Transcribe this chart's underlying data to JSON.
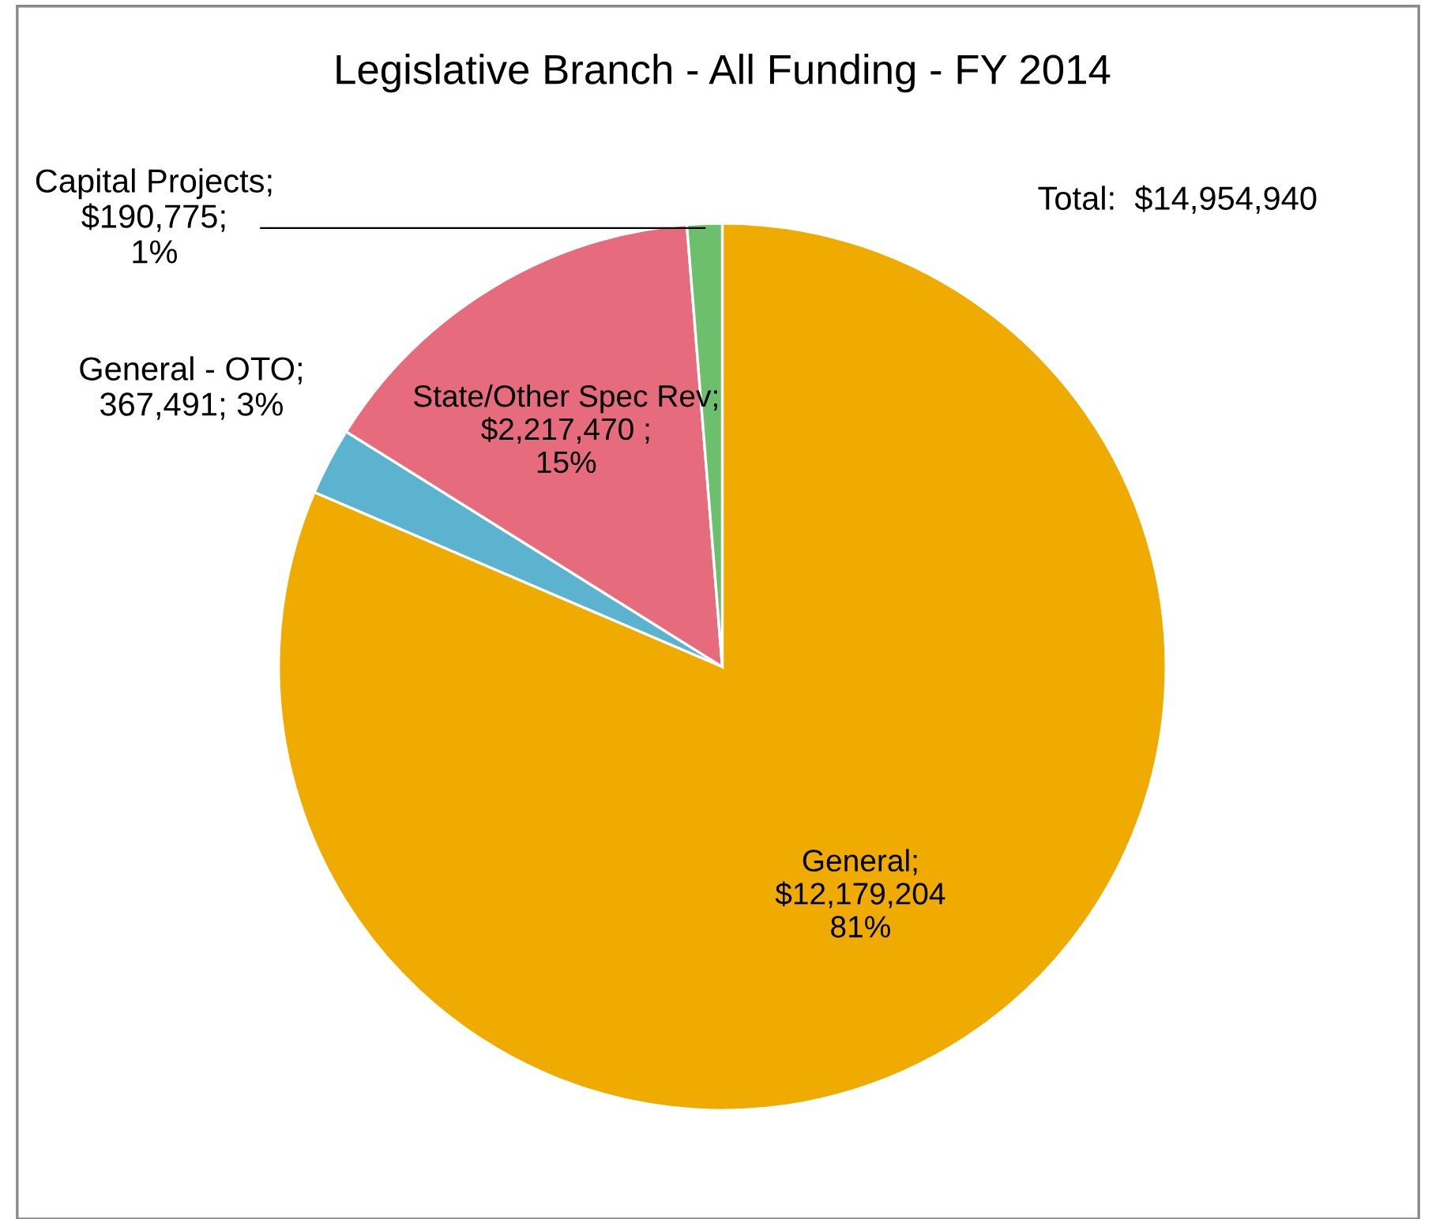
{
  "chart_data": {
    "type": "pie",
    "title": "Legislative Branch - All Funding - FY 2014",
    "categories": [
      "General",
      "General - OTO",
      "State/Other Spec Rev",
      "Capital Projects"
    ],
    "values": [
      12179204,
      367491,
      2217470,
      190775
    ],
    "colors": [
      "#f0ab00",
      "#5bb3cf",
      "#e56b7d",
      "#6cbf6c"
    ],
    "value_labels": [
      ";\n$12,179,204\n81%",
      ";\n367,491; 3%",
      ";\n$2,217,470 ;\n15%",
      ";\n$190,775;\n1%"
    ],
    "annotations": [
      "Total:  $14,954,940"
    ],
    "legend": false
  }
}
